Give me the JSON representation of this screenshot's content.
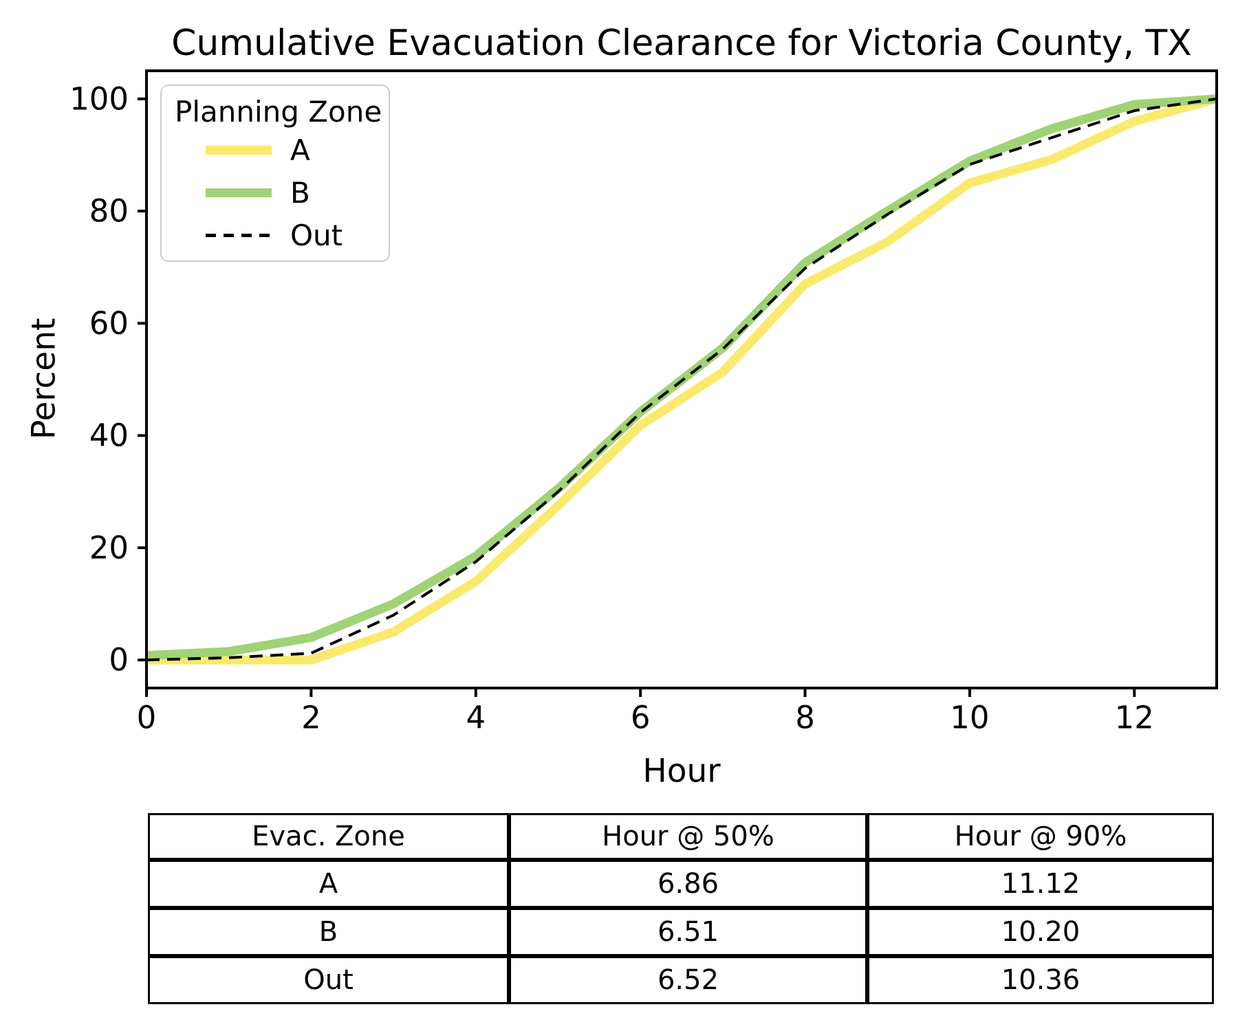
{
  "title": "Cumulative Evacuation Clearance for Victoria County, TX",
  "chart_data": {
    "type": "line",
    "x": [
      0,
      1,
      2,
      3,
      4,
      5,
      6,
      7,
      8,
      9,
      10,
      11,
      12,
      13
    ],
    "series": [
      {
        "name": "A",
        "color": "#F9EA6E",
        "width": 13,
        "dash": null,
        "values": [
          0,
          0,
          0,
          5,
          14,
          27.5,
          41.8,
          51.3,
          67,
          74.5,
          85,
          89.2,
          96,
          100
        ]
      },
      {
        "name": "B",
        "color": "#A0D276",
        "width": 13,
        "dash": null,
        "values": [
          0.8,
          1.5,
          4,
          10,
          18.5,
          30.5,
          44.2,
          55.6,
          70.8,
          80,
          88.9,
          94.7,
          99,
          100
        ]
      },
      {
        "name": "Out",
        "color": "#000000",
        "width": 4,
        "dash": [
          19,
          11
        ],
        "values": [
          0,
          0.4,
          1.2,
          8,
          17.5,
          30,
          44.1,
          55.4,
          69.8,
          79.4,
          88.3,
          93.1,
          97.9,
          100
        ]
      }
    ],
    "title": "Cumulative Evacuation Clearance for Victoria County, TX",
    "xlabel": "Hour",
    "ylabel": "Percent",
    "xlim": [
      0,
      13
    ],
    "ylim": [
      -5,
      105
    ],
    "xticks": [
      0,
      2,
      4,
      6,
      8,
      10,
      12
    ],
    "yticks": [
      0,
      20,
      40,
      60,
      80,
      100
    ],
    "grid": false,
    "legend_title": "Planning Zone",
    "legend_position": "upper left"
  },
  "table": {
    "headers": [
      "Evac. Zone",
      "Hour @ 50%",
      "Hour @ 90%"
    ],
    "rows": [
      [
        "A",
        "6.86",
        "11.12"
      ],
      [
        "B",
        "6.51",
        "10.20"
      ],
      [
        "Out",
        "6.52",
        "10.36"
      ]
    ]
  }
}
